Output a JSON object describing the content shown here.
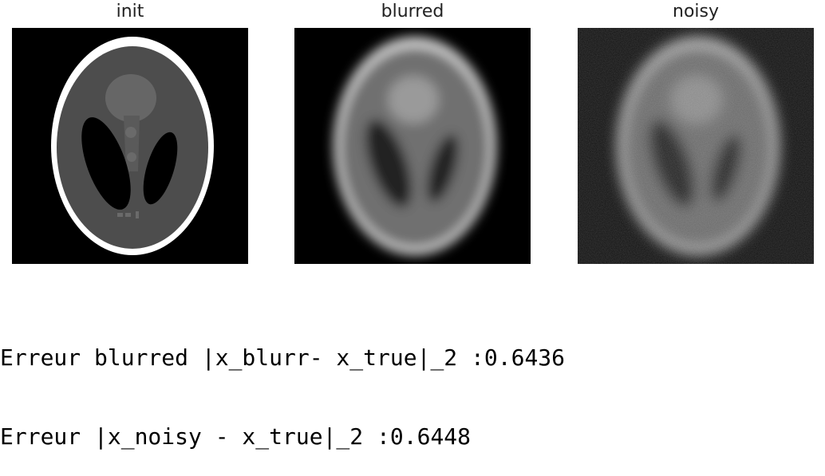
{
  "figure": {
    "panels": [
      {
        "title": "init"
      },
      {
        "title": "blurred"
      },
      {
        "title": "noisy"
      }
    ],
    "colors": {
      "background": "#000000",
      "skull_ring": "#ffffff",
      "brain": "#4d4d4d",
      "ventricle": "#000000",
      "center_blob": "#666666"
    }
  },
  "output": {
    "lines": [
      "Erreur blurred |x_blurr- x_true|_2 :0.6436",
      "Erreur |x_noisy - x_true|_2 :0.6448"
    ]
  }
}
